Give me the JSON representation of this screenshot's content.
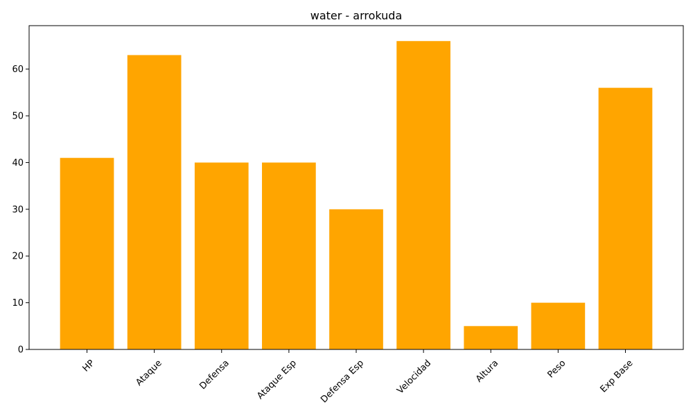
{
  "chart_data": {
    "type": "bar",
    "title": "water - arrokuda",
    "xlabel": "",
    "ylabel": "",
    "categories": [
      "HP",
      "Ataque",
      "Defensa",
      "Ataque Esp",
      "Defensa Esp",
      "Velocidad",
      "Altura",
      "Peso",
      "Exp Base"
    ],
    "values": [
      41,
      63,
      40,
      40,
      30,
      66,
      5,
      10,
      56
    ],
    "ylim": [
      0,
      69.3
    ],
    "yticks": [
      0,
      10,
      20,
      30,
      40,
      50,
      60
    ],
    "bar_color": "#ffa500",
    "grid": false,
    "legend": "none"
  }
}
